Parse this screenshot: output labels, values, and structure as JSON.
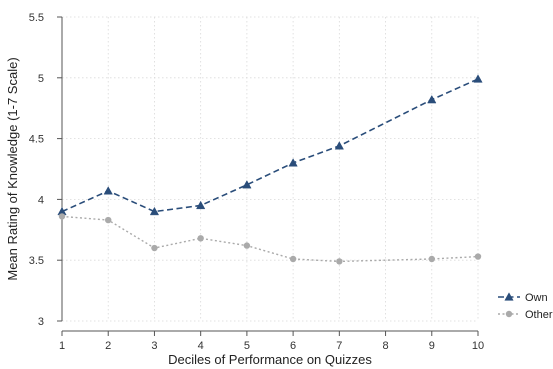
{
  "chart_data": {
    "type": "line",
    "title": "",
    "xlabel": "Deciles of Performance on Quizzes",
    "ylabel": "Mean Rating of Knowledge (1-7 Scale)",
    "x": [
      1,
      2,
      3,
      4,
      5,
      6,
      7,
      9,
      10
    ],
    "x_ticks": [
      1,
      2,
      3,
      4,
      5,
      6,
      7,
      8,
      9,
      10
    ],
    "x_tick_labels": [
      "1",
      "2",
      "3",
      "4",
      "5",
      "6",
      "7",
      "8",
      "9",
      "10"
    ],
    "xlim": [
      1,
      10
    ],
    "ylim": [
      3,
      5.5
    ],
    "y_ticks": [
      3,
      3.5,
      4,
      4.5,
      5,
      5.5
    ],
    "y_tick_labels": [
      "3",
      "3.5",
      "4",
      "4.5",
      "5",
      "5.5"
    ],
    "grid": true,
    "legend_position": "bottom-right",
    "series": [
      {
        "name": "Own",
        "values": [
          3.9,
          4.07,
          3.9,
          3.95,
          4.12,
          4.3,
          4.44,
          4.82,
          4.99
        ],
        "color": "#2a4d7a",
        "marker": "triangle",
        "line_style": "dashed"
      },
      {
        "name": "Other",
        "values": [
          3.86,
          3.83,
          3.6,
          3.68,
          3.62,
          3.51,
          3.49,
          3.51,
          3.53
        ],
        "color": "#aaaaaa",
        "marker": "circle",
        "line_style": "dotted"
      }
    ]
  }
}
